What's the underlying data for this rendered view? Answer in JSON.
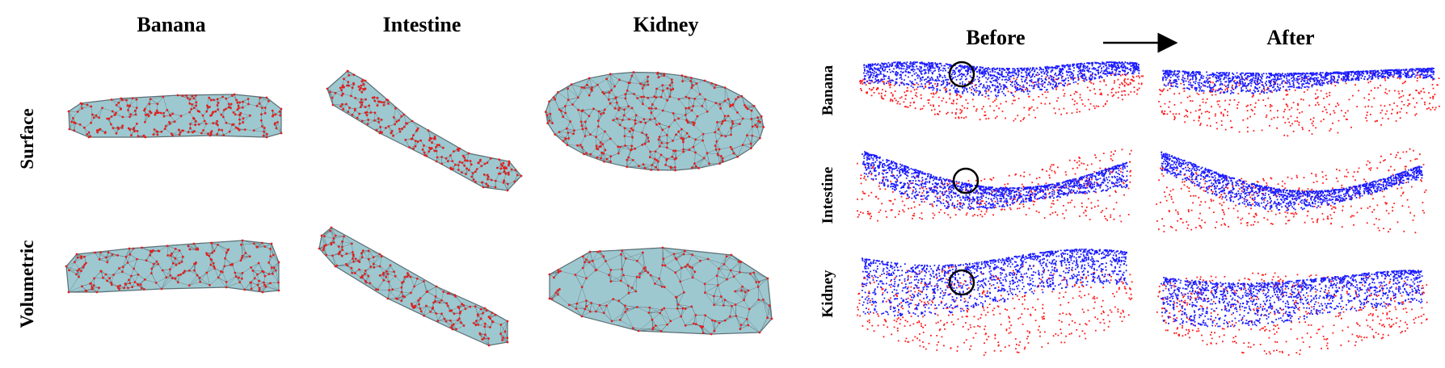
{
  "left_panel": {
    "columns": [
      "Banana",
      "Intestine",
      "Kidney"
    ],
    "rows": [
      "Surface",
      "Volumetric"
    ]
  },
  "right_panel": {
    "columns": [
      "Before",
      "After"
    ],
    "rows": [
      "Banana",
      "Intestine",
      "Kidney"
    ]
  },
  "colors": {
    "mesh_fill": "#9ec8d0",
    "mesh_edge": "#5a6e74",
    "vertex": "#e02020",
    "intraop_points": "#1a1aff",
    "preop_points": "#ff1a1a",
    "circle": "#000000"
  }
}
